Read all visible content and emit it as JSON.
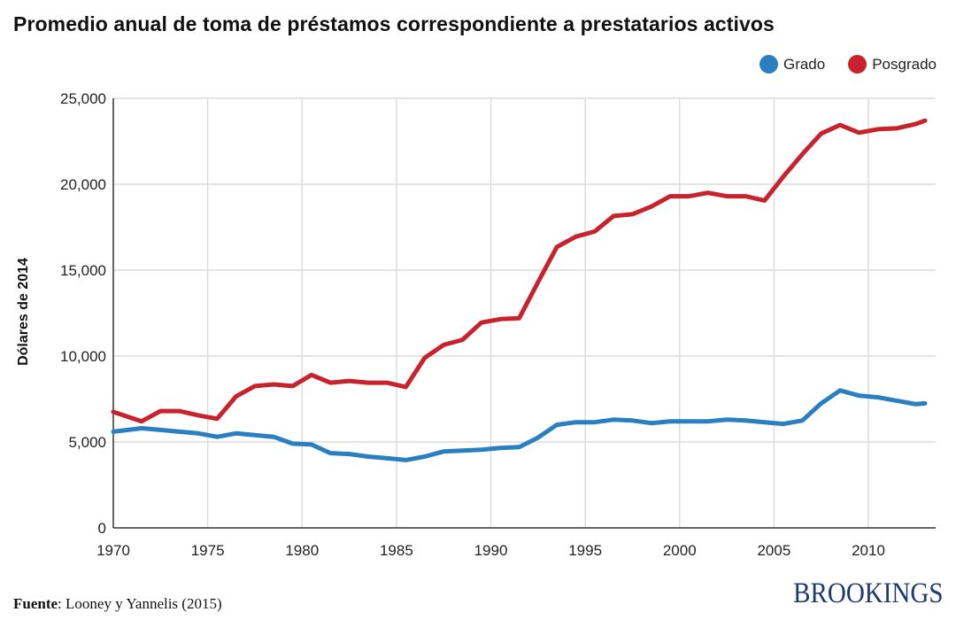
{
  "header": {
    "title": "Promedio anual de toma de préstamos correspondiente a prestatarios activos"
  },
  "legend": [
    {
      "label": "Grado",
      "color": "#2a7fc0"
    },
    {
      "label": "Posgrado",
      "color": "#c8222c"
    }
  ],
  "footer": {
    "source_label": "Fuente",
    "source_text": ": Looney y Yannelis (2015)",
    "brand": "BROOKINGS"
  },
  "chart_data": {
    "type": "line",
    "title": "Promedio anual de toma de préstamos correspondiente a prestatarios activos",
    "xlabel": "",
    "ylabel": "Dólares de 2014",
    "xlim": [
      1970,
      2013.5
    ],
    "ylim": [
      0,
      25000
    ],
    "grid": true,
    "legend_position": "top-right",
    "x_ticks": [
      1970,
      1975,
      1980,
      1985,
      1990,
      1995,
      2000,
      2005,
      2010
    ],
    "x_tick_labels": [
      "1970",
      "1975",
      "1980",
      "1985",
      "1990",
      "1995",
      "2000",
      "2005",
      "2010"
    ],
    "y_ticks": [
      0,
      5000,
      10000,
      15000,
      20000,
      25000
    ],
    "y_tick_labels": [
      "0",
      "5,000",
      "10,000",
      "15,000",
      "20,000",
      "25,000"
    ],
    "x": [
      1970,
      1971.5,
      1972.5,
      1973.5,
      1974.5,
      1975.5,
      1976.5,
      1977.5,
      1978.5,
      1979.5,
      1980.5,
      1981.5,
      1982.5,
      1983.5,
      1984.5,
      1985.5,
      1986.5,
      1987.5,
      1988.5,
      1989.5,
      1990.5,
      1991.5,
      1992.5,
      1993.5,
      1994.5,
      1995.5,
      1996.5,
      1997.5,
      1998.5,
      1999.5,
      2000.5,
      2001.5,
      2002.5,
      2003.5,
      2004.5,
      2005.5,
      2006.5,
      2007.5,
      2008.5,
      2009.5,
      2010.5,
      2011.5,
      2012.5,
      2013
    ],
    "series": [
      {
        "name": "Grado",
        "color": "#2a7fc0",
        "values": [
          5600,
          5800,
          5700,
          5600,
          5500,
          5300,
          5500,
          5400,
          5300,
          4900,
          4850,
          4350,
          4300,
          4150,
          4050,
          3950,
          4150,
          4450,
          4500,
          4550,
          4650,
          4700,
          5250,
          6000,
          6150,
          6150,
          6300,
          6250,
          6100,
          6200,
          6200,
          6200,
          6300,
          6250,
          6150,
          6050,
          6250,
          7250,
          8000,
          7700,
          7600,
          7400,
          7200,
          7250
        ]
      },
      {
        "name": "Posgrado",
        "color": "#c8222c",
        "values": [
          6750,
          6200,
          6800,
          6800,
          6550,
          6350,
          7650,
          8250,
          8350,
          8250,
          8900,
          8450,
          8550,
          8450,
          8450,
          8200,
          9900,
          10650,
          10950,
          11950,
          12150,
          12200,
          14300,
          16350,
          16950,
          17250,
          18150,
          18250,
          18700,
          19300,
          19300,
          19500,
          19300,
          19300,
          19050,
          20450,
          21750,
          22950,
          23450,
          23000,
          23200,
          23250,
          23500,
          23700
        ]
      }
    ]
  }
}
